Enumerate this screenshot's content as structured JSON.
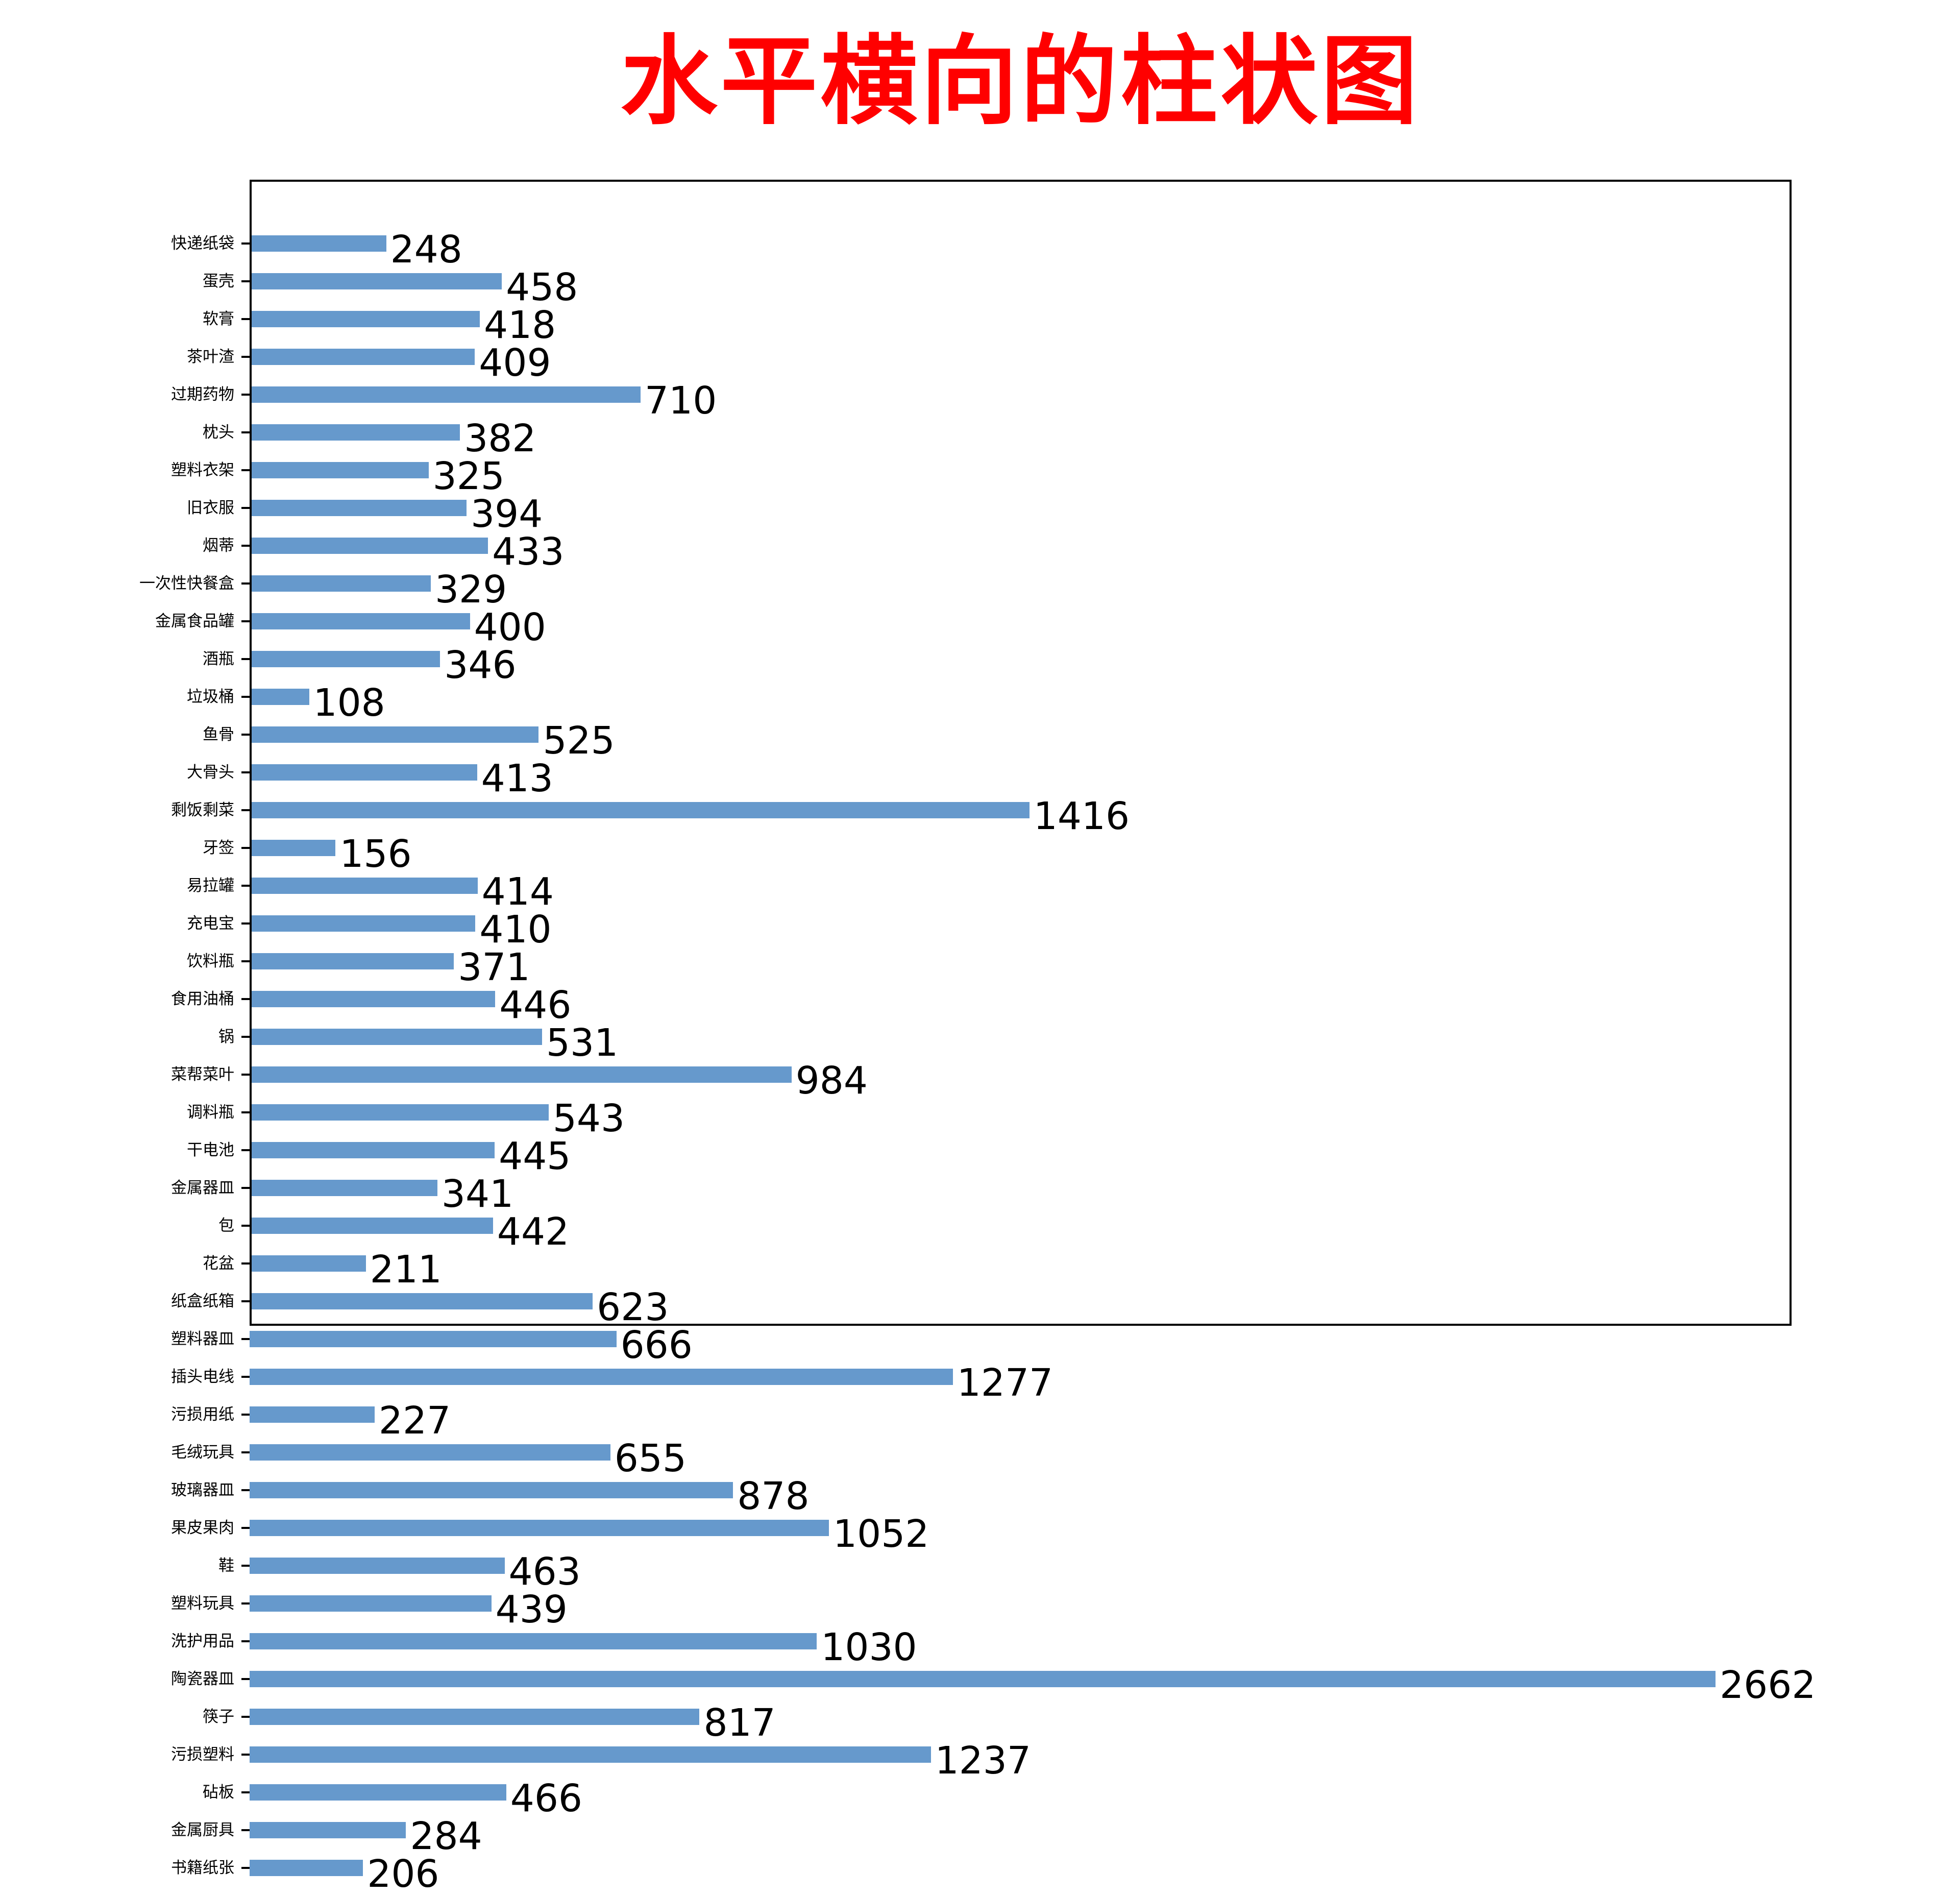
{
  "chart_data": {
    "type": "bar",
    "orientation": "horizontal",
    "title": "水平横向的柱状图",
    "title_color": "#FF0000",
    "bar_color": "#6699CC",
    "xlabel": "",
    "ylabel": "",
    "xlim": [
      0,
      2800
    ],
    "grid": false,
    "legend": "none",
    "categories": [
      "快递纸袋",
      "蛋壳",
      "软膏",
      "茶叶渣",
      "过期药物",
      "枕头",
      "塑料衣架",
      "旧衣服",
      "烟蒂",
      "一次性快餐盒",
      "金属食品罐",
      "酒瓶",
      "垃圾桶",
      "鱼骨",
      "大骨头",
      "剩饭剩菜",
      "牙签",
      "易拉罐",
      "充电宝",
      "饮料瓶",
      "食用油桶",
      "锅",
      "菜帮菜叶",
      "调料瓶",
      "干电池",
      "金属器皿",
      "包",
      "花盆",
      "纸盒纸箱",
      "塑料器皿",
      "插头电线",
      "污损用纸",
      "毛绒玩具",
      "玻璃器皿",
      "果皮果肉",
      "鞋",
      "塑料玩具",
      "洗护用品",
      "陶瓷器皿",
      "筷子",
      "污损塑料",
      "砧板",
      "金属厨具",
      "书籍纸张"
    ],
    "values": [
      248,
      458,
      418,
      409,
      710,
      382,
      325,
      394,
      433,
      329,
      400,
      346,
      108,
      525,
      413,
      1416,
      156,
      414,
      410,
      371,
      446,
      531,
      984,
      543,
      445,
      341,
      442,
      211,
      623,
      666,
      1277,
      227,
      655,
      878,
      1052,
      463,
      439,
      1030,
      2662,
      817,
      1237,
      466,
      284,
      206
    ]
  }
}
